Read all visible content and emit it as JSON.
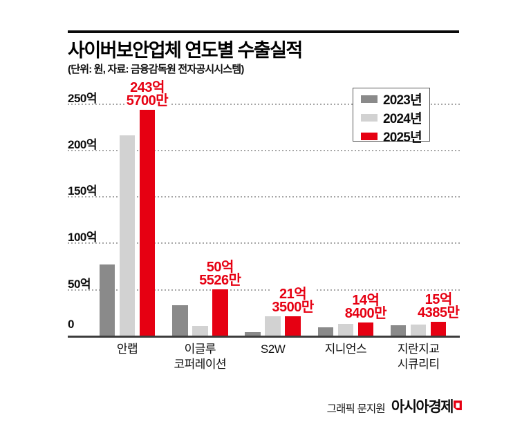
{
  "header": {
    "title": "사이버보안업체 연도별 수출실적",
    "subtitle": "(단위: 원, 자료: 금융감독원 전자공시시스템)"
  },
  "legend": {
    "items": [
      {
        "label": "2023년",
        "color": "#8a8a8a"
      },
      {
        "label": "2024년",
        "color": "#d2d2d2"
      },
      {
        "label": "2025년",
        "color": "#e60012"
      }
    ]
  },
  "footer": {
    "credit": "그래픽 문지원",
    "brand": "아시아경제",
    "logo_icon": "asiae-flag-icon",
    "logo_color": "#e60012"
  },
  "chart_data": {
    "type": "bar",
    "title": "사이버보안업체 연도별 수출실적",
    "unit_note": "단위: 원",
    "source_note": "자료: 금융감독원 전자공시시스템",
    "categories": [
      "안랩",
      "이글루코퍼레이션",
      "S2W",
      "지니언스",
      "지란지교 시큐리티"
    ],
    "category_lines": [
      [
        "안랩"
      ],
      [
        "이글루",
        "코퍼레이션"
      ],
      [
        "S2W"
      ],
      [
        "지니언스"
      ],
      [
        "지란지교",
        "시큐리티"
      ]
    ],
    "y_ticks": [
      0,
      50,
      100,
      150,
      200,
      250
    ],
    "y_tick_labels": [
      "0",
      "50억",
      "100억",
      "150억",
      "200억",
      "250억"
    ],
    "ylim": [
      0,
      260
    ],
    "value_unit": "억 원",
    "grid": "horizontal-dotted",
    "legend_position": "top-right",
    "series": [
      {
        "name": "2023년",
        "color": "#8a8a8a",
        "values": [
          77.5,
          33.5,
          4.8,
          9.4,
          12.0
        ]
      },
      {
        "name": "2024년",
        "color": "#d2d2d2",
        "values": [
          216.5,
          10.8,
          21.4,
          13.1,
          13.0
        ]
      },
      {
        "name": "2025년",
        "color": "#e60012",
        "values": [
          243.57,
          50.5526,
          21.35,
          14.84,
          15.4385
        ]
      }
    ],
    "value_labels": {
      "series": "2025년",
      "color": "#e60012",
      "lines": [
        [
          "243억",
          "5700만"
        ],
        [
          "50억",
          "5526만"
        ],
        [
          "21억",
          "3500만"
        ],
        [
          "14억",
          "8400만"
        ],
        [
          "15억",
          "4385만"
        ]
      ]
    }
  }
}
